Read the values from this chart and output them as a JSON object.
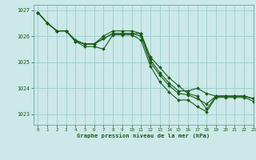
{
  "title": "Graphe pression niveau de la mer (hPa)",
  "bg_color": "#cce8e8",
  "grid_color": "#99cccc",
  "line_color": "#1a5c1a",
  "marker_color": "#1a5c1a",
  "xlim": [
    -0.5,
    23
  ],
  "ylim": [
    1022.6,
    1027.2
  ],
  "yticks": [
    1023,
    1024,
    1025,
    1026,
    1027
  ],
  "xticks": [
    0,
    1,
    2,
    3,
    4,
    5,
    6,
    7,
    8,
    9,
    10,
    11,
    12,
    13,
    14,
    15,
    16,
    17,
    18,
    19,
    20,
    21,
    22,
    23
  ],
  "series": [
    [
      1026.9,
      1026.5,
      1026.2,
      1026.2,
      1025.8,
      1025.7,
      1025.7,
      1025.9,
      1026.1,
      1026.1,
      1026.1,
      1026.1,
      1025.1,
      1024.6,
      1024.2,
      1023.9,
      1023.9,
      1024.0,
      1023.8,
      1023.7,
      1023.7,
      1023.7,
      1023.7,
      1023.6
    ],
    [
      1026.9,
      1026.5,
      1026.2,
      1026.2,
      1025.8,
      1025.7,
      1025.7,
      1026.0,
      1026.2,
      1026.2,
      1026.2,
      1026.1,
      1025.2,
      1024.8,
      1024.4,
      1024.1,
      1023.8,
      1023.7,
      1023.2,
      1023.7,
      1023.7,
      1023.7,
      1023.7,
      1023.6
    ],
    [
      1026.9,
      1026.5,
      1026.2,
      1026.2,
      1025.85,
      1025.7,
      1025.7,
      1025.9,
      1026.1,
      1026.1,
      1026.1,
      1026.0,
      1025.0,
      1024.5,
      1024.1,
      1023.8,
      1023.75,
      1023.6,
      1023.4,
      1023.7,
      1023.7,
      1023.7,
      1023.7,
      1023.6
    ],
    [
      1026.9,
      1026.5,
      1026.2,
      1026.2,
      1025.8,
      1025.6,
      1025.6,
      1025.5,
      1026.05,
      1026.05,
      1026.05,
      1025.85,
      1024.85,
      1024.25,
      1023.85,
      1023.55,
      1023.55,
      1023.3,
      1023.1,
      1023.65,
      1023.65,
      1023.65,
      1023.65,
      1023.5
    ]
  ]
}
